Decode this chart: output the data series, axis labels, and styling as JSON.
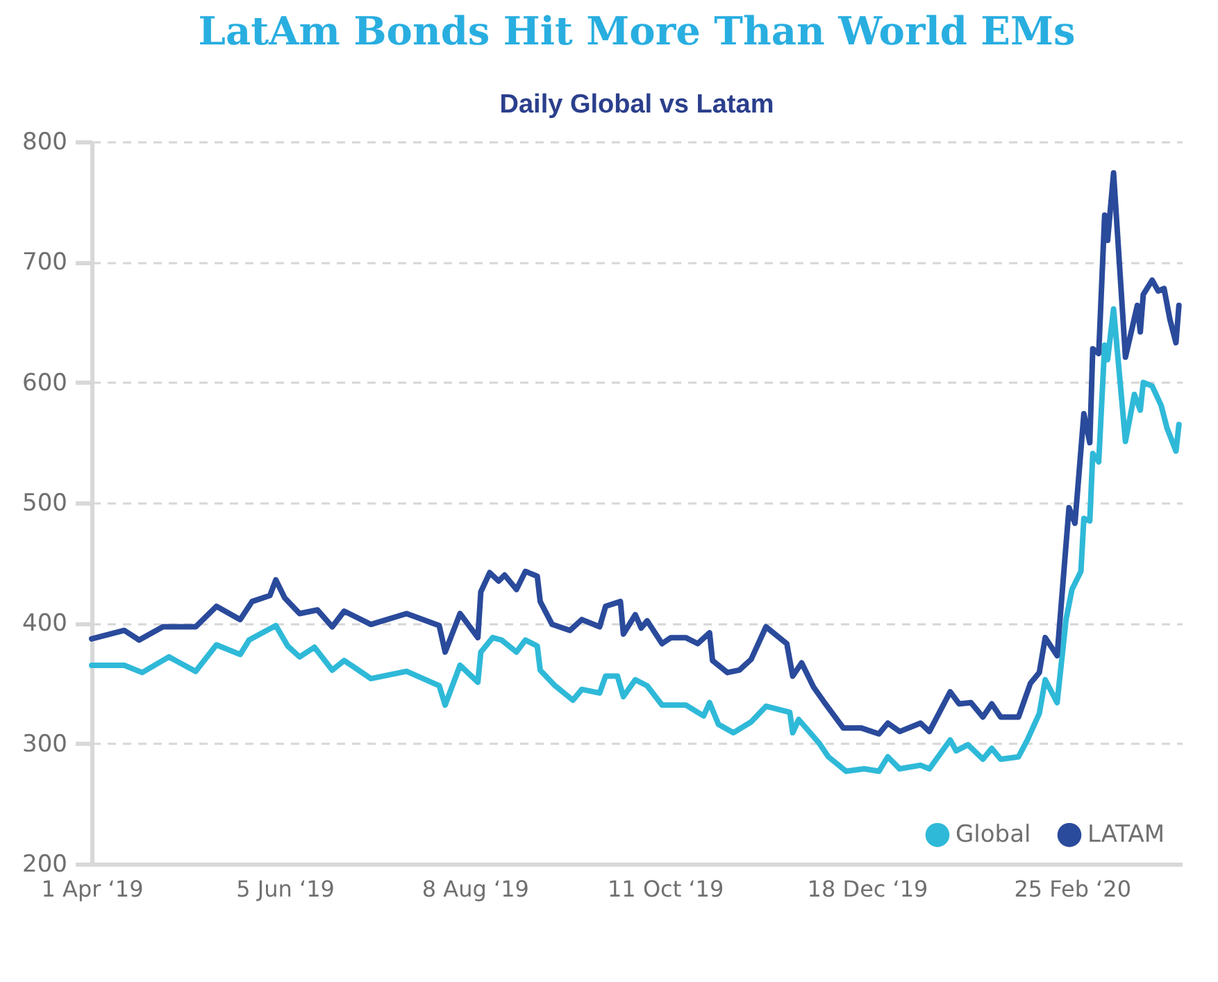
{
  "chart_data": {
    "type": "line",
    "title": "LatAm Bonds Hit More Than World EMs",
    "subtitle": "Daily Global vs Latam",
    "xlim": [
      "2019-04-01",
      "2020-04-02"
    ],
    "xticks": [
      {
        "value": "2019-04-01",
        "label": "1 Apr ‘19"
      },
      {
        "value": "2019-06-05",
        "label": "5 Jun ‘19"
      },
      {
        "value": "2019-08-08",
        "label": "8 Aug ‘19"
      },
      {
        "value": "2019-10-11",
        "label": "11 Oct ‘19"
      },
      {
        "value": "2019-12-18",
        "label": "18 Dec ‘19"
      },
      {
        "value": "2020-02-25",
        "label": "25 Feb ‘20"
      }
    ],
    "ylim": [
      200,
      800
    ],
    "yticks": [
      200,
      300,
      400,
      500,
      600,
      700,
      800
    ],
    "grid": "y",
    "legend": "bottom right",
    "series": [
      {
        "name": "Global",
        "color": "#2fb9d8",
        "x": [
          "2019-04-01",
          "2019-04-12",
          "2019-04-18",
          "2019-04-27",
          "2019-05-06",
          "2019-05-13",
          "2019-05-21",
          "2019-05-24",
          "2019-06-02",
          "2019-06-06",
          "2019-06-10",
          "2019-06-15",
          "2019-06-21",
          "2019-06-25",
          "2019-07-04",
          "2019-07-16",
          "2019-07-27",
          "2019-07-29",
          "2019-08-03",
          "2019-08-09",
          "2019-08-10",
          "2019-08-14",
          "2019-08-17",
          "2019-08-22",
          "2019-08-25",
          "2019-08-29",
          "2019-08-30",
          "2019-09-04",
          "2019-09-10",
          "2019-09-13",
          "2019-09-19",
          "2019-09-21",
          "2019-09-25",
          "2019-09-27",
          "2019-10-01",
          "2019-10-05",
          "2019-10-10",
          "2019-10-18",
          "2019-10-24",
          "2019-10-26",
          "2019-10-29",
          "2019-11-03",
          "2019-11-09",
          "2019-11-14",
          "2019-11-22",
          "2019-11-23",
          "2019-11-25",
          "2019-12-02",
          "2019-12-05",
          "2019-12-11",
          "2019-12-17",
          "2019-12-22",
          "2019-12-25",
          "2019-12-29",
          "2020-01-05",
          "2020-01-08",
          "2020-01-15",
          "2020-01-17",
          "2020-01-21",
          "2020-01-26",
          "2020-01-29",
          "2020-02-01",
          "2020-02-07",
          "2020-02-10",
          "2020-02-14",
          "2020-02-16",
          "2020-02-20",
          "2020-02-23",
          "2020-02-25",
          "2020-02-28",
          "2020-02-29",
          "2020-03-02",
          "2020-03-03",
          "2020-03-05",
          "2020-03-07",
          "2020-03-08",
          "2020-03-10",
          "2020-03-14",
          "2020-03-17",
          "2020-03-19",
          "2020-03-20",
          "2020-03-23",
          "2020-03-26",
          "2020-03-28",
          "2020-03-31",
          "2020-04-01"
        ],
        "values": [
          365,
          365,
          359,
          372,
          360,
          382,
          374,
          386,
          398,
          381,
          372,
          380,
          361,
          369,
          354,
          360,
          348,
          332,
          365,
          351,
          376,
          388,
          386,
          376,
          386,
          381,
          361,
          348,
          336,
          345,
          342,
          356,
          356,
          339,
          353,
          348,
          332,
          332,
          323,
          334,
          316,
          309,
          318,
          331,
          326,
          309,
          320,
          300,
          289,
          277,
          279,
          277,
          289,
          279,
          282,
          279,
          303,
          294,
          299,
          287,
          296,
          287,
          289,
          303,
          325,
          353,
          334,
          403,
          428,
          443,
          487,
          485,
          541,
          534,
          631,
          619,
          661,
          551,
          590,
          577,
          600,
          597,
          581,
          562,
          543,
          565
        ]
      },
      {
        "name": "LATAM",
        "color": "#2a4a9b",
        "x": [
          "2019-04-01",
          "2019-04-12",
          "2019-04-17",
          "2019-04-25",
          "2019-05-06",
          "2019-05-13",
          "2019-05-21",
          "2019-05-25",
          "2019-05-31",
          "2019-06-02",
          "2019-06-05",
          "2019-06-10",
          "2019-06-16",
          "2019-06-21",
          "2019-06-25",
          "2019-07-04",
          "2019-07-16",
          "2019-07-27",
          "2019-07-29",
          "2019-08-03",
          "2019-08-09",
          "2019-08-10",
          "2019-08-13",
          "2019-08-16",
          "2019-08-18",
          "2019-08-22",
          "2019-08-25",
          "2019-08-29",
          "2019-08-30",
          "2019-09-03",
          "2019-09-09",
          "2019-09-13",
          "2019-09-19",
          "2019-09-21",
          "2019-09-26",
          "2019-09-27",
          "2019-10-01",
          "2019-10-03",
          "2019-10-05",
          "2019-10-10",
          "2019-10-13",
          "2019-10-18",
          "2019-10-22",
          "2019-10-26",
          "2019-10-27",
          "2019-11-01",
          "2019-11-05",
          "2019-11-09",
          "2019-11-14",
          "2019-11-21",
          "2019-11-23",
          "2019-11-26",
          "2019-11-30",
          "2019-12-04",
          "2019-12-10",
          "2019-12-16",
          "2019-12-22",
          "2019-12-25",
          "2019-12-29",
          "2020-01-05",
          "2020-01-08",
          "2020-01-15",
          "2020-01-18",
          "2020-01-22",
          "2020-01-26",
          "2020-01-29",
          "2020-02-01",
          "2020-02-07",
          "2020-02-11",
          "2020-02-14",
          "2020-02-16",
          "2020-02-20",
          "2020-02-24",
          "2020-02-26",
          "2020-02-29",
          "2020-03-02",
          "2020-03-03",
          "2020-03-05",
          "2020-03-07",
          "2020-03-08",
          "2020-03-10",
          "2020-03-14",
          "2020-03-18",
          "2020-03-19",
          "2020-03-20",
          "2020-03-23",
          "2020-03-25",
          "2020-03-27",
          "2020-03-29",
          "2020-03-31",
          "2020-04-01"
        ],
        "values": [
          387,
          394,
          386,
          397,
          397,
          414,
          403,
          418,
          423,
          436,
          421,
          408,
          411,
          397,
          410,
          399,
          408,
          398,
          376,
          408,
          388,
          426,
          442,
          435,
          440,
          428,
          443,
          439,
          418,
          399,
          394,
          403,
          397,
          414,
          418,
          391,
          407,
          396,
          402,
          383,
          388,
          388,
          383,
          392,
          369,
          359,
          361,
          370,
          397,
          383,
          356,
          367,
          347,
          333,
          313,
          313,
          308,
          317,
          310,
          317,
          310,
          343,
          333,
          334,
          322,
          333,
          322,
          322,
          350,
          359,
          388,
          373,
          496,
          483,
          574,
          550,
          628,
          624,
          739,
          718,
          774,
          621,
          664,
          642,
          673,
          685,
          676,
          678,
          652,
          633,
          664
        ]
      }
    ]
  }
}
